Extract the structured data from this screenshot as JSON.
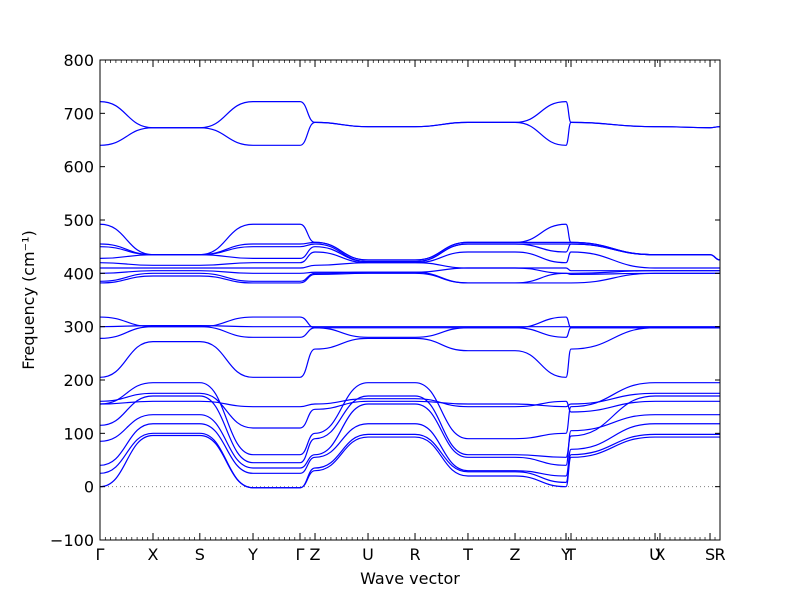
{
  "chart_data": {
    "type": "line",
    "title": "",
    "xlabel": "Wave vector",
    "ylabel": "Frequency (cm⁻¹)",
    "ylim": [
      -100,
      800
    ],
    "yticks": [
      -100,
      0,
      100,
      200,
      300,
      400,
      500,
      600,
      700,
      800
    ],
    "zero_line": {
      "y": 0,
      "style": "dotted",
      "color": "#808080"
    },
    "line_color": "#0000ff",
    "grid": false,
    "legend": "none",
    "high_symmetry_points": [
      {
        "label": "Γ",
        "x": 0.0
      },
      {
        "label": "X",
        "x": 0.0855
      },
      {
        "label": "S",
        "x": 0.161
      },
      {
        "label": "Y",
        "x": 0.2468
      },
      {
        "label": "Γ",
        "x": 0.3226
      },
      {
        "label": "Z",
        "x": 0.3468
      },
      {
        "label": "U",
        "x": 0.4323
      },
      {
        "label": "R",
        "x": 0.5081
      },
      {
        "label": "T",
        "x": 0.5935
      },
      {
        "label": "Z",
        "x": 0.6694
      },
      {
        "label": "Y",
        "x": 0.7516
      },
      {
        "label": "T",
        "x": 0.7597
      },
      {
        "label": "U",
        "x": 0.8952
      },
      {
        "label": "X",
        "x": 0.9032
      },
      {
        "label": "S",
        "x": 0.9839
      },
      {
        "label": "R",
        "x": 1.0
      }
    ],
    "xlim": [
      0,
      1
    ],
    "series": [
      {
        "values": [
          0,
          96,
          96,
          -2,
          -2,
          30,
          93,
          93,
          20,
          20,
          0,
          55,
          93,
          93,
          93,
          93
        ]
      },
      {
        "values": [
          25,
          100,
          100,
          -2,
          -2,
          35,
          98,
          98,
          28,
          28,
          8,
          60,
          98,
          98,
          98,
          98
        ]
      },
      {
        "values": [
          40,
          118,
          118,
          25,
          25,
          55,
          118,
          118,
          30,
          30,
          20,
          70,
          118,
          118,
          118,
          118
        ]
      },
      {
        "values": [
          85,
          135,
          135,
          35,
          35,
          60,
          155,
          155,
          55,
          55,
          40,
          105,
          135,
          135,
          135,
          135
        ]
      },
      {
        "values": [
          115,
          170,
          170,
          45,
          45,
          90,
          170,
          170,
          60,
          60,
          55,
          95,
          170,
          170,
          170,
          170
        ]
      },
      {
        "values": [
          155,
          195,
          195,
          60,
          60,
          100,
          195,
          195,
          90,
          90,
          100,
          150,
          195,
          195,
          195,
          195
        ]
      },
      {
        "values": [
          160,
          175,
          175,
          110,
          110,
          145,
          160,
          160,
          155,
          155,
          150,
          155,
          175,
          175,
          175,
          175
        ]
      },
      {
        "values": [
          155,
          160,
          160,
          150,
          150,
          155,
          165,
          165,
          150,
          150,
          160,
          140,
          160,
          160,
          160,
          160
        ]
      },
      {
        "values": [
          205,
          272,
          272,
          205,
          205,
          258,
          278,
          278,
          255,
          255,
          205,
          258,
          298,
          298,
          298,
          298
        ]
      },
      {
        "values": [
          278,
          300,
          300,
          280,
          280,
          298,
          280,
          280,
          298,
          298,
          280,
          298,
          298,
          298,
          298,
          298
        ]
      },
      {
        "values": [
          300,
          302,
          302,
          300,
          300,
          300,
          300,
          300,
          300,
          300,
          300,
          300,
          300,
          300,
          300,
          300
        ]
      },
      {
        "values": [
          318,
          300,
          300,
          318,
          318,
          298,
          298,
          298,
          298,
          298,
          318,
          298,
          298,
          298,
          298,
          298
        ]
      },
      {
        "values": [
          382,
          395,
          395,
          382,
          382,
          398,
          400,
          400,
          382,
          382,
          382,
          382,
          400,
          400,
          400,
          400
        ]
      },
      {
        "values": [
          385,
          400,
          400,
          385,
          385,
          400,
          402,
          402,
          382,
          382,
          400,
          398,
          400,
          400,
          400,
          400
        ]
      },
      {
        "values": [
          400,
          405,
          405,
          400,
          400,
          402,
          402,
          402,
          410,
          410,
          400,
          400,
          405,
          405,
          405,
          405
        ]
      },
      {
        "values": [
          410,
          410,
          410,
          410,
          410,
          415,
          420,
          420,
          410,
          410,
          410,
          405,
          405,
          405,
          405,
          405
        ]
      },
      {
        "values": [
          420,
          415,
          415,
          420,
          420,
          440,
          420,
          420,
          440,
          440,
          420,
          440,
          410,
          410,
          410,
          410
        ]
      },
      {
        "values": [
          428,
          435,
          435,
          428,
          428,
          450,
          422,
          422,
          455,
          455,
          440,
          455,
          435,
          435,
          435,
          425
        ]
      },
      {
        "values": [
          450,
          435,
          435,
          450,
          450,
          455,
          422,
          422,
          455,
          455,
          455,
          455,
          435,
          435,
          435,
          425
        ]
      },
      {
        "values": [
          455,
          435,
          435,
          455,
          455,
          458,
          425,
          425,
          458,
          458,
          458,
          458,
          435,
          435,
          435,
          425
        ]
      },
      {
        "values": [
          492,
          435,
          435,
          492,
          492,
          458,
          425,
          425,
          458,
          458,
          492,
          458,
          435,
          435,
          435,
          425
        ]
      },
      {
        "values": [
          640,
          673,
          673,
          640,
          640,
          683,
          675,
          675,
          683,
          683,
          640,
          683,
          675,
          675,
          673,
          675
        ]
      },
      {
        "values": [
          722,
          673,
          673,
          722,
          722,
          683,
          675,
          675,
          683,
          683,
          722,
          683,
          675,
          675,
          673,
          675
        ]
      }
    ]
  }
}
